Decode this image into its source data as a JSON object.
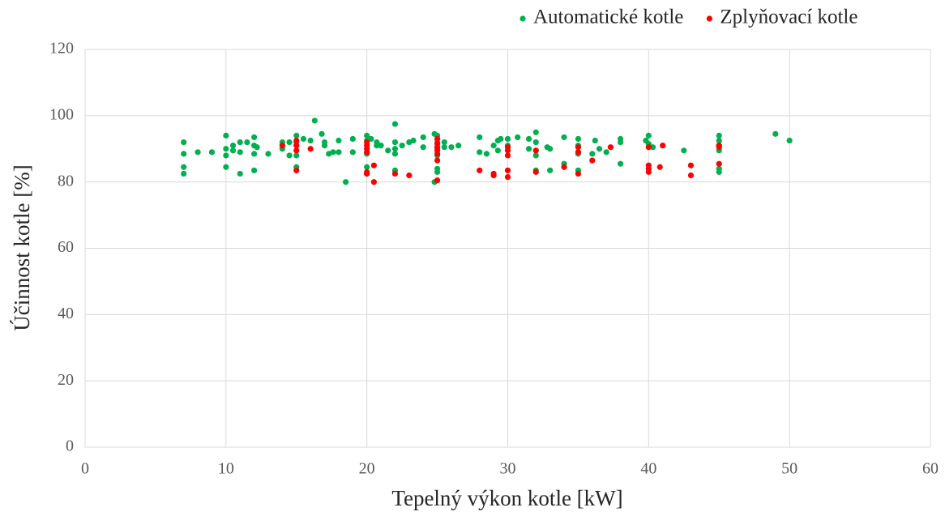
{
  "chart_data": {
    "type": "scatter",
    "xlabel": "Tepelný výkon kotle [kW]",
    "ylabel": "Účinnost kotle [%]",
    "xlim": [
      0,
      60
    ],
    "xticks": [
      0,
      10,
      20,
      30,
      40,
      50,
      60
    ],
    "ylim": [
      0,
      120
    ],
    "yticks": [
      0,
      20,
      40,
      60,
      80,
      100,
      120
    ],
    "grid": true,
    "legend": "top-right",
    "series": [
      {
        "name": "Automatické kotle",
        "color": "#00b050",
        "x": [
          7,
          7,
          7,
          7,
          8,
          9,
          10,
          10,
          10,
          10,
          10.5,
          10.5,
          11,
          11,
          11,
          11.5,
          12,
          12,
          12,
          12,
          12.2,
          13,
          14,
          14,
          14.5,
          14.5,
          15,
          15,
          15,
          15,
          15.5,
          16,
          16.3,
          16.8,
          17,
          17,
          17.3,
          17.6,
          18,
          18,
          18.5,
          19,
          19,
          20,
          20,
          20,
          20,
          20,
          20.3,
          20.7,
          20.7,
          21,
          21.5,
          22,
          22,
          22,
          22,
          22,
          22.5,
          23,
          23.3,
          24,
          24,
          24.8,
          24.8,
          25,
          25,
          25,
          25,
          25,
          25,
          25.5,
          25.5,
          26,
          26.5,
          28,
          28,
          28.5,
          29,
          29.3,
          29.3,
          29.5,
          30,
          30,
          30.7,
          31.5,
          31.5,
          32,
          32,
          32,
          32,
          32,
          32.8,
          33,
          33,
          34,
          34,
          35,
          35,
          35,
          35,
          36,
          36.2,
          36.5,
          37,
          38,
          38,
          38,
          39.8,
          40,
          40,
          40.3,
          42.5,
          45,
          45,
          45,
          45,
          45,
          45,
          49,
          50
        ],
        "values": [
          92,
          88.5,
          84.5,
          82.5,
          89,
          89,
          94,
          90,
          88,
          84.5,
          91,
          89.5,
          92,
          89,
          82.5,
          92,
          93.5,
          91,
          88.5,
          83.5,
          90.5,
          88.5,
          92,
          90,
          92,
          88,
          94,
          92,
          88,
          84.5,
          93,
          92.5,
          98.5,
          94.5,
          92,
          91,
          88.5,
          89,
          92.5,
          89,
          80,
          93,
          89,
          94,
          92.5,
          88.5,
          84.5,
          82.5,
          93,
          92,
          91,
          91,
          89.5,
          97.5,
          92,
          90,
          88.5,
          83.5,
          91,
          92,
          92.5,
          93.5,
          90.5,
          94.5,
          80,
          94,
          92,
          90,
          88,
          84,
          83,
          92,
          90.5,
          90.5,
          91,
          93.5,
          89,
          88.5,
          91,
          92.5,
          89.5,
          93,
          93,
          91,
          93.5,
          93,
          90,
          95,
          92,
          89.5,
          88,
          83.5,
          90.5,
          90,
          83.5,
          93.5,
          85.5,
          93,
          91,
          88.5,
          83.5,
          88.5,
          92.5,
          90,
          89,
          93,
          92,
          85.5,
          92.5,
          94,
          91.5,
          90.5,
          89.5,
          94,
          92.5,
          91,
          89.5,
          84,
          83,
          94.5,
          92.5
        ]
      },
      {
        "name": "Zplyňovací kotle",
        "color": "#ff0000",
        "x": [
          14,
          15,
          15,
          15,
          15,
          16,
          20,
          20,
          20,
          20,
          20,
          20,
          20.5,
          20.5,
          22,
          23,
          25,
          25,
          25,
          25,
          25,
          25,
          25,
          28,
          29,
          29,
          30,
          30,
          30,
          30,
          30,
          32,
          32,
          34,
          35,
          35,
          35,
          36,
          37.3,
          40,
          40,
          40,
          40,
          40.8,
          41,
          43,
          43,
          45,
          45,
          45
        ],
        "values": [
          91,
          92.5,
          91,
          89.5,
          83.5,
          90,
          92,
          91,
          90,
          89,
          83,
          82.5,
          85,
          80,
          82.5,
          82,
          93,
          91.5,
          90.5,
          89.5,
          88.5,
          86.5,
          80.5,
          83.5,
          82.5,
          82,
          90.5,
          89.5,
          88,
          83.5,
          81.5,
          89.5,
          83,
          84.5,
          90.5,
          89,
          82.5,
          86.5,
          90.5,
          90.5,
          85,
          84,
          83,
          84.5,
          91,
          85,
          82,
          91,
          90.5,
          85.5
        ]
      }
    ]
  }
}
